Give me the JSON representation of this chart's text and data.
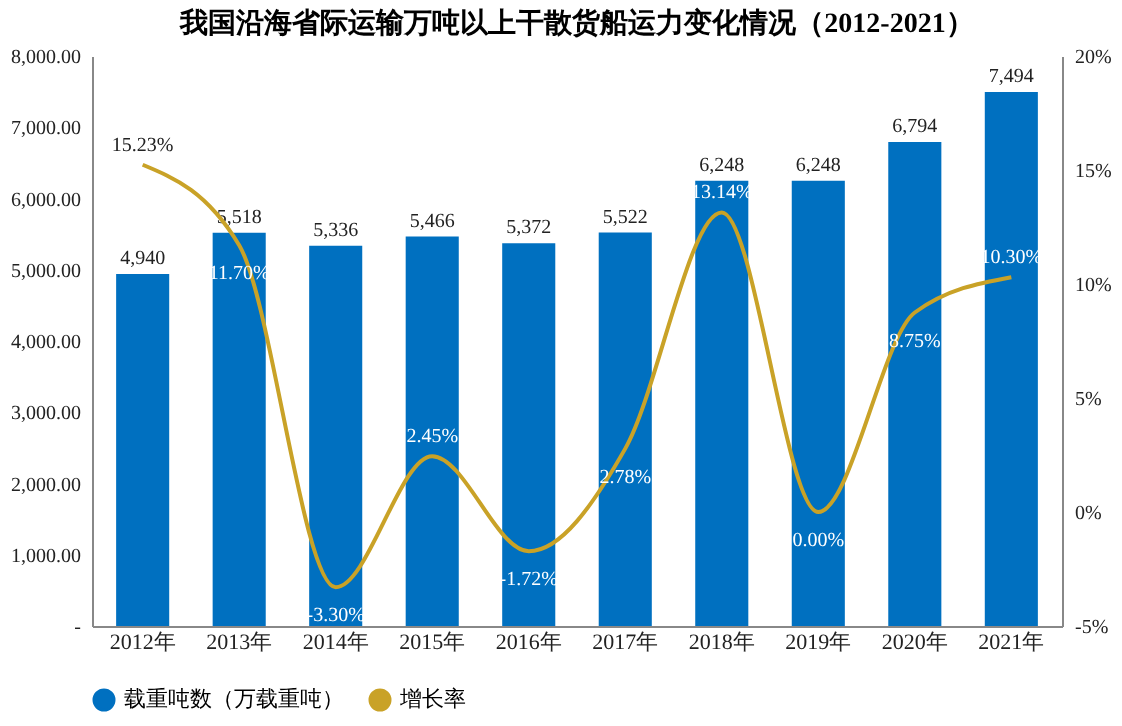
{
  "chart_data": {
    "type": "bar",
    "title": "我国沿海省际运输万吨以上干散货船运力变化情况（2012-2021）",
    "categories": [
      "2012年",
      "2013年",
      "2014年",
      "2015年",
      "2016年",
      "2017年",
      "2018年",
      "2019年",
      "2020年",
      "2021年"
    ],
    "series": [
      {
        "name": "载重吨数（万载重吨）",
        "color": "#0070c0",
        "values": [
          4940,
          5518,
          5336,
          5466,
          5372,
          5522,
          6248,
          6248,
          6794,
          7494
        ],
        "value_labels": [
          "4,940",
          "5,518",
          "5,336",
          "5,466",
          "5,372",
          "5,522",
          "6,248",
          "6,248",
          "6,794",
          "7,494"
        ]
      },
      {
        "name": "增长率",
        "type": "line",
        "axis": "y2",
        "color": "#c9a227",
        "values": [
          15.23,
          11.7,
          -3.3,
          2.45,
          -1.72,
          2.78,
          13.14,
          0.0,
          8.75,
          10.3
        ],
        "value_labels": [
          "15.23%",
          "11.70%",
          "-3.30%",
          "2.45%",
          "-1.72%",
          "2.78%",
          "13.14%",
          "0.00%",
          "8.75%",
          "10.30%"
        ]
      }
    ],
    "ylim": [
      0,
      8000
    ],
    "yticks": [
      {
        "value": 0,
        "label": "-"
      },
      {
        "value": 1000,
        "label": "1,000.00"
      },
      {
        "value": 2000,
        "label": "2,000.00"
      },
      {
        "value": 3000,
        "label": "3,000.00"
      },
      {
        "value": 4000,
        "label": "4,000.00"
      },
      {
        "value": 5000,
        "label": "5,000.00"
      },
      {
        "value": 6000,
        "label": "6,000.00"
      },
      {
        "value": 7000,
        "label": "7,000.00"
      },
      {
        "value": 8000,
        "label": "8,000.00"
      }
    ],
    "y2lim": [
      -5,
      20
    ],
    "y2ticks": [
      {
        "value": -5,
        "label": "-5%"
      },
      {
        "value": 0,
        "label": "0%"
      },
      {
        "value": 5,
        "label": "5%"
      },
      {
        "value": 10,
        "label": "10%"
      },
      {
        "value": 15,
        "label": "15%"
      },
      {
        "value": 20,
        "label": "20%"
      }
    ],
    "legend": "bottom",
    "grid": false
  }
}
